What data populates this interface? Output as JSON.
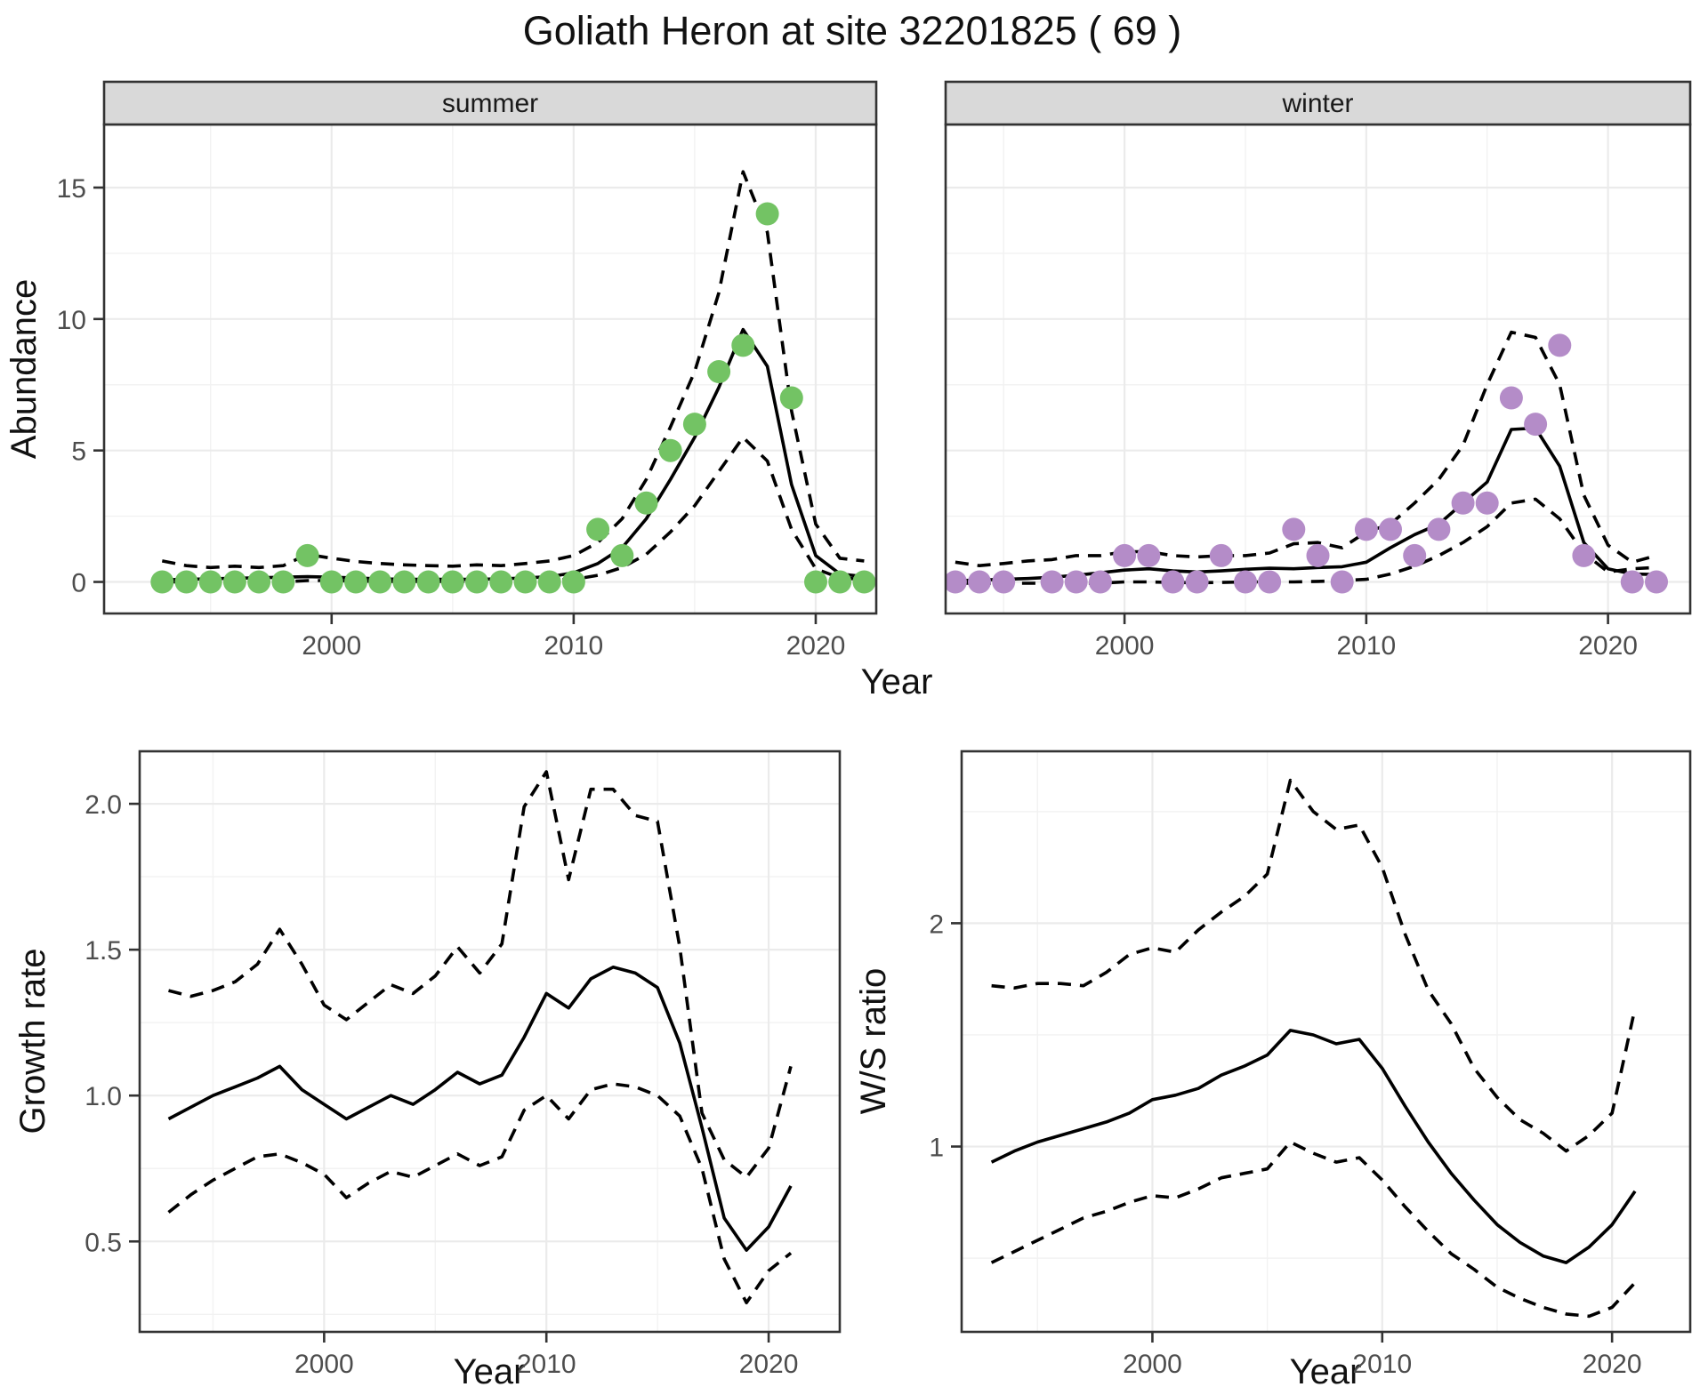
{
  "title": "Goliath Heron at site 32201825 ( 69 )",
  "shared": {
    "x_axis_title": "Year"
  },
  "colors": {
    "summer_point": "#73c364",
    "winter_point": "#b48cc8",
    "line": "#000000",
    "strip_bg": "#d9d9d9",
    "panel_border": "#333333",
    "grid_major": "#ebebeb",
    "grid_minor": "#f2f2f2",
    "tick_text": "#4d4d4d"
  },
  "chart_data": [
    {
      "id": "abundance-summer",
      "type": "scatter",
      "facet_label": "summer",
      "ylabel": "Abundance",
      "xlabel": "Year",
      "xlim": [
        1990.6,
        2022.5
      ],
      "ylim": [
        -1.2,
        17.4
      ],
      "x_major_ticks": [
        2000,
        2010,
        2020
      ],
      "x_tick_labels": [
        "2000",
        "2010",
        "2020"
      ],
      "x_minor_ticks": [
        1995,
        2005,
        2015
      ],
      "y_major_ticks": [
        0,
        5,
        10,
        15
      ],
      "y_tick_labels": [
        "0",
        "5",
        "10",
        "15"
      ],
      "y_minor_ticks": [
        2.5,
        7.5,
        12.5
      ],
      "points": {
        "color": "#73c364",
        "x": [
          1993,
          1994,
          1995,
          1996,
          1997,
          1998,
          1999,
          2000,
          2001,
          2002,
          2003,
          2004,
          2005,
          2006,
          2007,
          2008,
          2009,
          2010,
          2011,
          2012,
          2013,
          2014,
          2015,
          2016,
          2017,
          2018,
          2019,
          2020,
          2021,
          2022
        ],
        "y": [
          0,
          0,
          0,
          0,
          0,
          0,
          1,
          0,
          0,
          0,
          0,
          0,
          0,
          0,
          0,
          0,
          0,
          0,
          2,
          1,
          3,
          5,
          6,
          8,
          9,
          14,
          7,
          0,
          0,
          0
        ]
      },
      "series_x": [
        1993,
        1994,
        1995,
        1996,
        1997,
        1998,
        1999,
        2000,
        2001,
        2002,
        2003,
        2004,
        2005,
        2006,
        2007,
        2008,
        2009,
        2010,
        2011,
        2012,
        2013,
        2014,
        2015,
        2016,
        2017,
        2018,
        2019,
        2020,
        2021,
        2022
      ],
      "series": [
        {
          "name": "model-fit",
          "style": "solid",
          "y": [
            0.08,
            0.1,
            0.12,
            0.14,
            0.16,
            0.18,
            0.2,
            0.18,
            0.15,
            0.12,
            0.1,
            0.1,
            0.1,
            0.1,
            0.12,
            0.15,
            0.2,
            0.35,
            0.7,
            1.3,
            2.4,
            3.9,
            5.5,
            7.4,
            9.6,
            8.2,
            3.7,
            1.0,
            0.3,
            0.2
          ]
        },
        {
          "name": "upper-ci",
          "style": "dashed",
          "y": [
            0.8,
            0.62,
            0.55,
            0.6,
            0.55,
            0.62,
            1.05,
            0.9,
            0.78,
            0.7,
            0.65,
            0.62,
            0.6,
            0.65,
            0.62,
            0.7,
            0.8,
            1.0,
            1.5,
            2.4,
            3.9,
            5.9,
            8.0,
            11.0,
            15.6,
            13.3,
            6.5,
            2.2,
            0.9,
            0.8
          ]
        },
        {
          "name": "lower-ci",
          "style": "dashed",
          "y": [
            0.0,
            0.0,
            0.0,
            0.0,
            0.0,
            0.0,
            0.05,
            0.05,
            0.03,
            0.02,
            0.02,
            0.02,
            0.02,
            0.02,
            0.03,
            0.05,
            0.07,
            0.1,
            0.25,
            0.55,
            1.05,
            1.9,
            2.9,
            4.2,
            5.5,
            4.6,
            2.0,
            0.5,
            0.15,
            0.1
          ]
        }
      ]
    },
    {
      "id": "abundance-winter",
      "type": "scatter",
      "facet_label": "winter",
      "ylabel": "Abundance",
      "xlabel": "Year",
      "xlim": [
        1992.6,
        2023.4
      ],
      "ylim": [
        -1.2,
        17.4
      ],
      "x_major_ticks": [
        2000,
        2010,
        2020
      ],
      "x_tick_labels": [
        "2000",
        "2010",
        "2020"
      ],
      "x_minor_ticks": [
        1995,
        2005,
        2015
      ],
      "y_major_ticks": [
        0,
        5,
        10,
        15
      ],
      "y_tick_labels": [
        "0",
        "5",
        "10",
        "15"
      ],
      "y_minor_ticks": [
        2.5,
        7.5,
        12.5
      ],
      "points": {
        "color": "#b48cc8",
        "x": [
          1993,
          1994,
          1995,
          1997,
          1998,
          1999,
          2000,
          2001,
          2002,
          2003,
          2004,
          2005,
          2006,
          2007,
          2008,
          2009,
          2010,
          2011,
          2012,
          2013,
          2014,
          2015,
          2016,
          2017,
          2018,
          2019,
          2021,
          2022
        ],
        "y": [
          0,
          0,
          0,
          0,
          0,
          0,
          1,
          1,
          0,
          0,
          1,
          0,
          0,
          2,
          1,
          0,
          2,
          2,
          1,
          2,
          3,
          3,
          7,
          6,
          9,
          1,
          0,
          0
        ]
      },
      "series_x": [
        1993,
        1994,
        1995,
        1996,
        1997,
        1998,
        1999,
        2000,
        2001,
        2002,
        2003,
        2004,
        2005,
        2006,
        2007,
        2008,
        2009,
        2010,
        2011,
        2012,
        2013,
        2014,
        2015,
        2016,
        2017,
        2018,
        2019,
        2020,
        2021,
        2022
      ],
      "series": [
        {
          "name": "model-fit",
          "style": "solid",
          "y": [
            0.05,
            0.07,
            0.1,
            0.13,
            0.18,
            0.25,
            0.35,
            0.45,
            0.5,
            0.42,
            0.38,
            0.42,
            0.48,
            0.52,
            0.5,
            0.55,
            0.58,
            0.75,
            1.3,
            1.8,
            2.2,
            3.0,
            3.8,
            5.8,
            5.85,
            4.4,
            1.5,
            0.5,
            0.3,
            0.28
          ]
        },
        {
          "name": "upper-ci",
          "style": "dashed",
          "y": [
            0.75,
            0.62,
            0.7,
            0.8,
            0.85,
            1.0,
            1.0,
            1.15,
            1.15,
            1.0,
            0.95,
            1.0,
            1.0,
            1.1,
            1.45,
            1.5,
            1.3,
            1.9,
            2.2,
            3.0,
            3.9,
            5.2,
            7.5,
            9.5,
            9.3,
            7.5,
            3.3,
            1.4,
            0.75,
            1.0
          ]
        },
        {
          "name": "lower-ci",
          "style": "dashed",
          "y": [
            -0.05,
            -0.05,
            -0.05,
            -0.05,
            -0.05,
            -0.05,
            -0.05,
            0.0,
            0.0,
            -0.02,
            -0.03,
            -0.02,
            0.0,
            0.0,
            0.0,
            0.02,
            0.05,
            0.1,
            0.3,
            0.6,
            1.0,
            1.5,
            2.1,
            3.0,
            3.15,
            2.4,
            1.1,
            0.38,
            0.5,
            0.55
          ]
        }
      ]
    },
    {
      "id": "growth-rate",
      "type": "line",
      "facet_label": null,
      "ylabel": "Growth rate",
      "xlabel": "Year",
      "xlim": [
        1991.7,
        2023.2
      ],
      "ylim": [
        0.19,
        2.18
      ],
      "x_major_ticks": [
        2000,
        2010,
        2020
      ],
      "x_tick_labels": [
        "2000",
        "2010",
        "2020"
      ],
      "x_minor_ticks": [
        1995,
        2005,
        2015
      ],
      "y_major_ticks": [
        0.5,
        1.0,
        1.5,
        2.0
      ],
      "y_tick_labels": [
        "0.5",
        "1.0",
        "1.5",
        "2.0"
      ],
      "y_minor_ticks": [
        0.25,
        0.75,
        1.25,
        1.75
      ],
      "points": null,
      "series_x": [
        1993,
        1994,
        1995,
        1996,
        1997,
        1998,
        1999,
        2000,
        2001,
        2002,
        2003,
        2004,
        2005,
        2006,
        2007,
        2008,
        2009,
        2010,
        2011,
        2012,
        2013,
        2014,
        2015,
        2016,
        2017,
        2018,
        2019,
        2020,
        2021
      ],
      "series": [
        {
          "name": "model-fit",
          "style": "solid",
          "y": [
            0.92,
            0.96,
            1.0,
            1.03,
            1.06,
            1.1,
            1.02,
            0.97,
            0.92,
            0.96,
            1.0,
            0.97,
            1.02,
            1.08,
            1.04,
            1.07,
            1.2,
            1.35,
            1.3,
            1.4,
            1.44,
            1.42,
            1.37,
            1.18,
            0.89,
            0.58,
            0.47,
            0.55,
            0.69
          ]
        },
        {
          "name": "upper-ci",
          "style": "dashed",
          "y": [
            1.36,
            1.34,
            1.36,
            1.39,
            1.45,
            1.57,
            1.45,
            1.31,
            1.26,
            1.32,
            1.38,
            1.35,
            1.41,
            1.51,
            1.42,
            1.52,
            1.99,
            2.11,
            1.74,
            2.05,
            2.05,
            1.96,
            1.94,
            1.51,
            0.94,
            0.78,
            0.72,
            0.82,
            1.1
          ]
        },
        {
          "name": "lower-ci",
          "style": "dashed",
          "y": [
            0.6,
            0.66,
            0.71,
            0.75,
            0.79,
            0.8,
            0.77,
            0.73,
            0.65,
            0.7,
            0.74,
            0.72,
            0.76,
            0.8,
            0.76,
            0.79,
            0.95,
            1.0,
            0.92,
            1.02,
            1.04,
            1.03,
            1.0,
            0.93,
            0.75,
            0.44,
            0.29,
            0.4,
            0.46
          ]
        }
      ]
    },
    {
      "id": "ws-ratio",
      "type": "line",
      "facet_label": null,
      "ylabel": "W/S ratio",
      "xlabel": "Year",
      "xlim": [
        1991.7,
        2023.4
      ],
      "ylim": [
        0.17,
        2.77
      ],
      "x_major_ticks": [
        2000,
        2010,
        2020
      ],
      "x_tick_labels": [
        "2000",
        "2010",
        "2020"
      ],
      "x_minor_ticks": [
        1995,
        2005,
        2015
      ],
      "y_major_ticks": [
        1,
        2
      ],
      "y_tick_labels": [
        "1",
        "2"
      ],
      "y_minor_ticks": [
        0.5,
        1.5,
        2.5
      ],
      "points": null,
      "series_x": [
        1993,
        1994,
        1995,
        1996,
        1997,
        1998,
        1999,
        2000,
        2001,
        2002,
        2003,
        2004,
        2005,
        2006,
        2007,
        2008,
        2009,
        2010,
        2011,
        2012,
        2013,
        2014,
        2015,
        2016,
        2017,
        2018,
        2019,
        2020,
        2021
      ],
      "series": [
        {
          "name": "model-fit",
          "style": "solid",
          "y": [
            0.93,
            0.98,
            1.02,
            1.05,
            1.08,
            1.11,
            1.15,
            1.21,
            1.23,
            1.26,
            1.32,
            1.36,
            1.41,
            1.52,
            1.5,
            1.46,
            1.48,
            1.35,
            1.18,
            1.02,
            0.88,
            0.76,
            0.65,
            0.57,
            0.51,
            0.48,
            0.55,
            0.65,
            0.8
          ]
        },
        {
          "name": "upper-ci",
          "style": "dashed",
          "y": [
            1.72,
            1.71,
            1.73,
            1.73,
            1.72,
            1.78,
            1.86,
            1.89,
            1.87,
            1.97,
            2.05,
            2.12,
            2.22,
            2.64,
            2.5,
            2.42,
            2.44,
            2.25,
            1.95,
            1.7,
            1.55,
            1.35,
            1.22,
            1.12,
            1.06,
            0.98,
            1.05,
            1.15,
            1.62
          ]
        },
        {
          "name": "lower-ci",
          "style": "dashed",
          "y": [
            0.48,
            0.53,
            0.58,
            0.63,
            0.68,
            0.71,
            0.75,
            0.78,
            0.77,
            0.81,
            0.86,
            0.88,
            0.9,
            1.02,
            0.97,
            0.93,
            0.95,
            0.85,
            0.73,
            0.62,
            0.52,
            0.45,
            0.37,
            0.32,
            0.28,
            0.25,
            0.24,
            0.28,
            0.39
          ]
        }
      ]
    }
  ]
}
